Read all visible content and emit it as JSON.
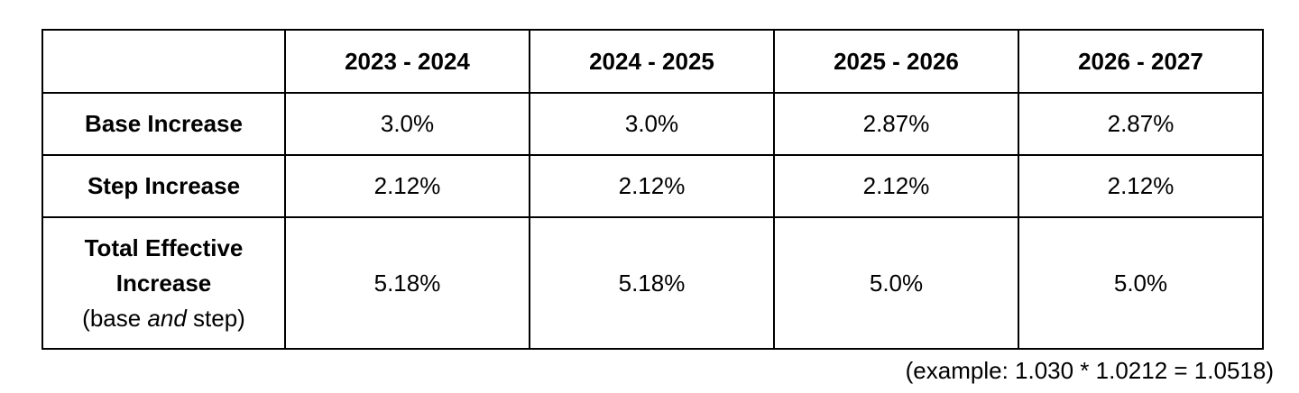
{
  "table": {
    "columns": [
      "2023 - 2024",
      "2024 - 2025",
      "2025 - 2026",
      "2026 - 2027"
    ],
    "rows": [
      {
        "label": "Base Increase",
        "values": [
          "3.0%",
          "3.0%",
          "2.87%",
          "2.87%"
        ]
      },
      {
        "label": "Step Increase",
        "values": [
          "2.12%",
          "2.12%",
          "2.12%",
          "2.12%"
        ]
      },
      {
        "label_line1": "Total Effective",
        "label_line2": "Increase",
        "note_before": "(base ",
        "note_emphasis": "and",
        "note_after": " step)",
        "values": [
          "5.18%",
          "5.18%",
          "5.0%",
          "5.0%"
        ]
      }
    ]
  },
  "footnote": "(example: 1.030 * 1.0212 = 1.0518)"
}
